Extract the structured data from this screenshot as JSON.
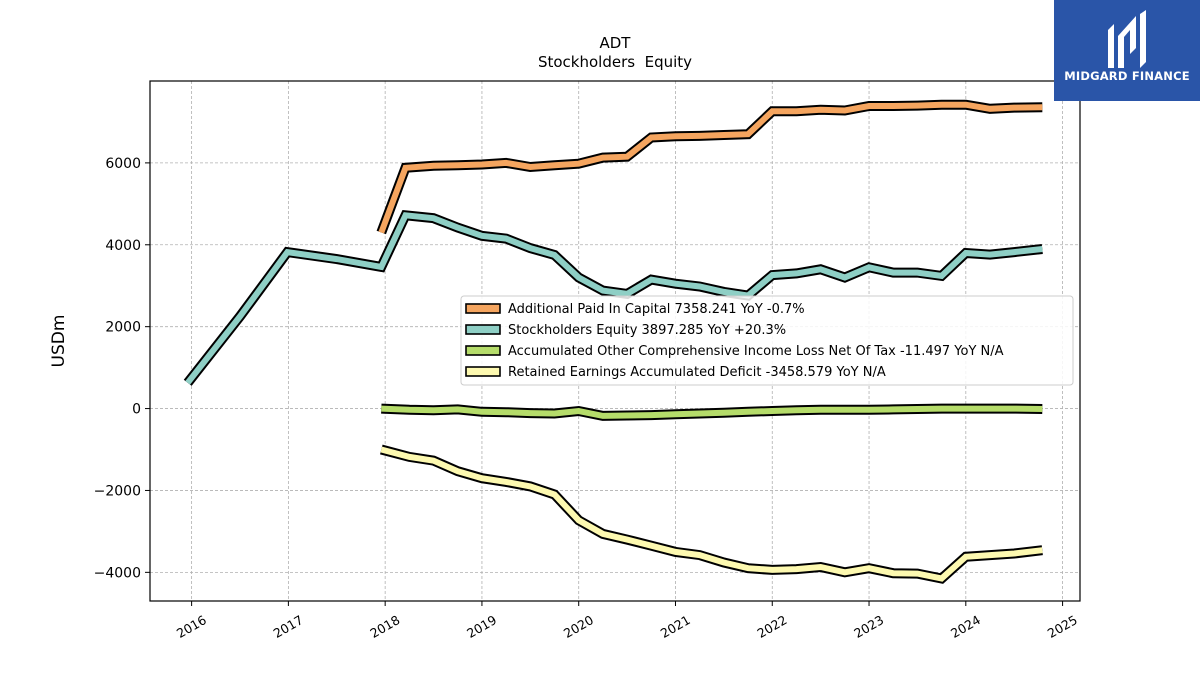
{
  "chart_data": {
    "type": "line",
    "title": "ADT",
    "subtitle": "Stockholders  Equity",
    "xlabel": "",
    "ylabel": "USDm",
    "xlim": [
      2015.57,
      2025.18
    ],
    "ylim": [
      -4700,
      8000
    ],
    "x_ticks": [
      2016,
      2017,
      2018,
      2019,
      2020,
      2021,
      2022,
      2023,
      2024,
      2025
    ],
    "y_ticks": [
      -4000,
      -2000,
      0,
      2000,
      4000,
      6000
    ],
    "y_tick_labels": [
      "−4000",
      "−2000",
      "0",
      "2000",
      "4000",
      "6000"
    ],
    "grid": true,
    "legend_position": "center-right",
    "series": [
      {
        "name": "Additional Paid In Capital  7358.241 YoY -0.7%",
        "color": "#f5a55f",
        "x": [
          2017.96,
          2018.21,
          2018.5,
          2018.75,
          2019.0,
          2019.25,
          2019.5,
          2019.75,
          2020.0,
          2020.25,
          2020.5,
          2020.75,
          2021.0,
          2021.25,
          2021.5,
          2021.75,
          2022.0,
          2022.25,
          2022.5,
          2022.75,
          2023.0,
          2023.25,
          2023.5,
          2023.75,
          2024.0,
          2024.25,
          2024.5,
          2024.79
        ],
        "values": [
          4300,
          5880,
          5930,
          5940,
          5960,
          6000,
          5900,
          5940,
          5980,
          6130,
          6150,
          6620,
          6650,
          6660,
          6680,
          6700,
          7260,
          7260,
          7300,
          7280,
          7390,
          7390,
          7400,
          7420,
          7420,
          7320,
          7350,
          7358
        ]
      },
      {
        "name": "Stockholders Equity  3897.285 YoY +20.3%",
        "color": "#8ecfc5",
        "x": [
          2015.96,
          2016.5,
          2016.99,
          2017.5,
          2017.96,
          2018.21,
          2018.5,
          2018.75,
          2019.0,
          2019.25,
          2019.5,
          2019.75,
          2020.0,
          2020.25,
          2020.5,
          2020.75,
          2021.0,
          2021.25,
          2021.5,
          2021.75,
          2022.0,
          2022.25,
          2022.5,
          2022.75,
          2023.0,
          2023.25,
          2023.5,
          2023.75,
          2024.0,
          2024.25,
          2024.5,
          2024.79
        ],
        "values": [
          630,
          2250,
          3820,
          3650,
          3460,
          4720,
          4650,
          4420,
          4220,
          4150,
          3920,
          3750,
          3200,
          2880,
          2800,
          3150,
          3050,
          2980,
          2850,
          2760,
          3260,
          3300,
          3400,
          3200,
          3450,
          3320,
          3320,
          3240,
          3800,
          3760,
          3820,
          3897
        ]
      },
      {
        "name": "Accumulated Other Comprehensive Income Loss Net Of Tax  -11.497 YoY N/A",
        "color": "#b5dc6a",
        "x": [
          2017.96,
          2018.25,
          2018.5,
          2018.75,
          2019.0,
          2019.25,
          2019.5,
          2019.75,
          2020.0,
          2020.25,
          2020.5,
          2020.75,
          2021.0,
          2021.25,
          2021.5,
          2021.75,
          2022.0,
          2022.25,
          2022.5,
          2022.75,
          2023.0,
          2023.25,
          2023.5,
          2023.75,
          2024.0,
          2024.25,
          2024.5,
          2024.79
        ],
        "values": [
          0,
          -30,
          -40,
          -20,
          -80,
          -90,
          -110,
          -120,
          -60,
          -180,
          -170,
          -160,
          -140,
          -120,
          -100,
          -80,
          -60,
          -40,
          -30,
          -30,
          -30,
          -20,
          -10,
          0,
          0,
          0,
          0,
          -11
        ]
      },
      {
        "name": "Retained Earnings Accumulated Deficit  -3458.579 YoY N/A",
        "color": "#fdf9b0",
        "x": [
          2017.96,
          2018.25,
          2018.5,
          2018.75,
          2019.0,
          2019.25,
          2019.5,
          2019.75,
          2020.0,
          2020.25,
          2020.5,
          2020.75,
          2021.0,
          2021.25,
          2021.5,
          2021.75,
          2022.0,
          2022.25,
          2022.5,
          2022.75,
          2023.0,
          2023.25,
          2023.5,
          2023.75,
          2024.0,
          2024.25,
          2024.5,
          2024.79
        ],
        "values": [
          -1000,
          -1180,
          -1270,
          -1530,
          -1700,
          -1790,
          -1900,
          -2100,
          -2730,
          -3060,
          -3200,
          -3350,
          -3500,
          -3580,
          -3760,
          -3900,
          -3940,
          -3920,
          -3870,
          -4000,
          -3900,
          -4020,
          -4030,
          -4150,
          -3620,
          -3580,
          -3540,
          -3459
        ]
      }
    ]
  },
  "logo": {
    "text": "MIDGARD FINANCE"
  }
}
